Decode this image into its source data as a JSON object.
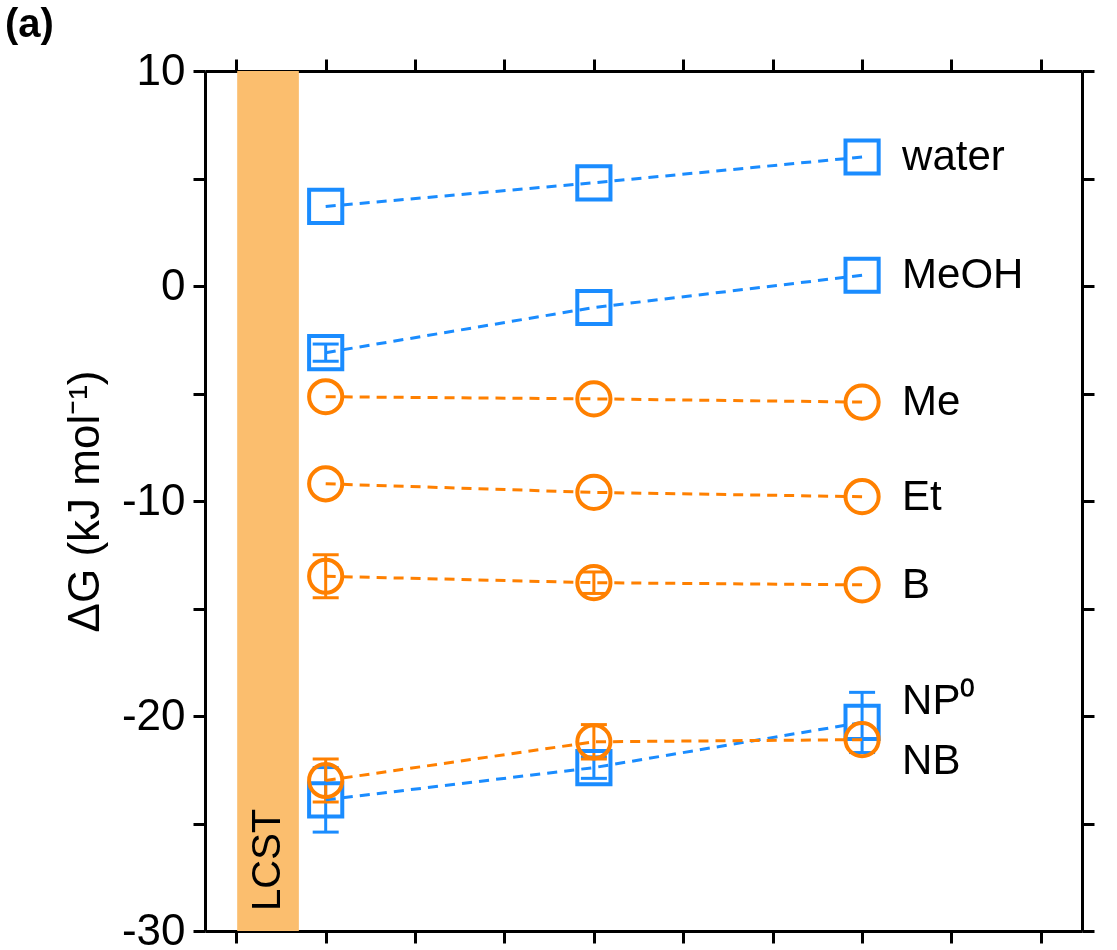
{
  "chart_data": {
    "type": "line",
    "title": "(a)",
    "ylabel": "ΔG (kJ mol⁻¹)",
    "categories": [
      null,
      null,
      null
    ],
    "ylim": [
      -30,
      10
    ],
    "yticks": [
      -30,
      {
        "value": -25,
        "label": null
      },
      -20,
      {
        "value": -15,
        "label": null
      },
      -10,
      {
        "value": -5,
        "label": null
      },
      0,
      {
        "value": 5,
        "label": null
      },
      10
    ],
    "tick_labels": "y",
    "grid": false,
    "legend": "right",
    "line_style": "dashed",
    "series": [
      {
        "name": "water",
        "color": "#1a8cff",
        "marker": "square",
        "values": [
          3.7,
          4.8,
          6.0
        ]
      },
      {
        "name": "MeOH",
        "color": "#1a8cff",
        "marker": "square",
        "values": [
          -3.1,
          -1.0,
          0.5
        ],
        "errors": [
          0.4,
          null,
          null
        ]
      },
      {
        "name": "Me",
        "color": "#ff8000",
        "marker": "circle",
        "values": [
          -5.15,
          -5.25,
          -5.4
        ]
      },
      {
        "name": "Et",
        "color": "#ff8000",
        "marker": "circle",
        "values": [
          -9.2,
          -9.6,
          -9.8
        ]
      },
      {
        "name": "B",
        "color": "#ff8000",
        "marker": "circle",
        "values": [
          -13.5,
          -13.8,
          -13.9
        ],
        "errors": [
          1.0,
          0.5,
          null
        ]
      },
      {
        "name": "NP⁰",
        "color": "#1a8cff",
        "marker": "square",
        "values": [
          -23.9,
          -22.4,
          -20.3
        ],
        "errors": [
          1.5,
          0.5,
          1.4
        ]
      },
      {
        "name": "NB",
        "color": "#ff8000",
        "marker": "circle",
        "values": [
          -23.0,
          -21.2,
          -21.1
        ],
        "errors": [
          1.0,
          0.8,
          null
        ]
      }
    ],
    "annotations": [
      "LCST"
    ]
  }
}
